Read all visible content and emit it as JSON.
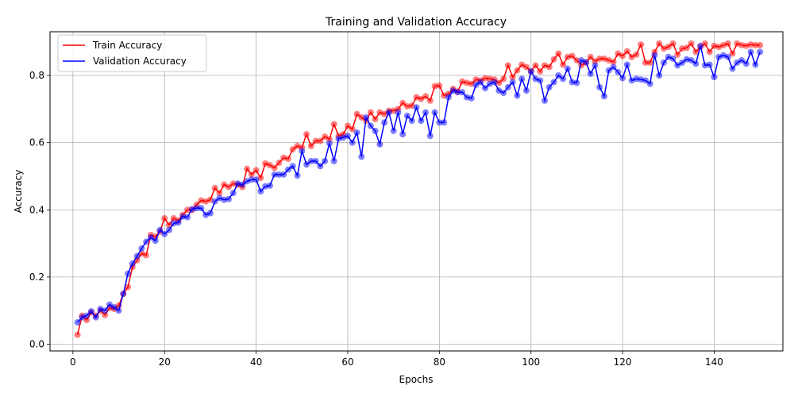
{
  "chart_data": {
    "type": "line",
    "title": "Training and Validation Accuracy",
    "xlabel": "Epochs",
    "ylabel": "Accuracy",
    "xlim": [
      -5,
      155
    ],
    "ylim": [
      -0.02,
      0.93
    ],
    "xticks": [
      0,
      20,
      40,
      60,
      80,
      100,
      120,
      140
    ],
    "yticks": [
      0.0,
      0.2,
      0.4,
      0.6,
      0.8
    ],
    "ytick_labels": [
      "0.0",
      "0.2",
      "0.4",
      "0.6",
      "0.8"
    ],
    "grid": true,
    "legend_position": "top-left",
    "x": [
      1,
      2,
      3,
      4,
      5,
      6,
      7,
      8,
      9,
      10,
      11,
      12,
      13,
      14,
      15,
      16,
      17,
      18,
      19,
      20,
      21,
      22,
      23,
      24,
      25,
      26,
      27,
      28,
      29,
      30,
      31,
      32,
      33,
      34,
      35,
      36,
      37,
      38,
      39,
      40,
      41,
      42,
      43,
      44,
      45,
      46,
      47,
      48,
      49,
      50,
      51,
      52,
      53,
      54,
      55,
      56,
      57,
      58,
      59,
      60,
      61,
      62,
      63,
      64,
      65,
      66,
      67,
      68,
      69,
      70,
      71,
      72,
      73,
      74,
      75,
      76,
      77,
      78,
      79,
      80,
      81,
      82,
      83,
      84,
      85,
      86,
      87,
      88,
      89,
      90,
      91,
      92,
      93,
      94,
      95,
      96,
      97,
      98,
      99,
      100,
      101,
      102,
      103,
      104,
      105,
      106,
      107,
      108,
      109,
      110,
      111,
      112,
      113,
      114,
      115,
      116,
      117,
      118,
      119,
      120,
      121,
      122,
      123,
      124,
      125,
      126,
      127,
      128,
      129,
      130,
      131,
      132,
      133,
      134,
      135,
      136,
      137,
      138,
      139,
      140,
      141,
      142,
      143,
      144,
      145,
      146,
      147,
      148,
      149,
      150
    ],
    "series": [
      {
        "name": "Train Accuracy",
        "color": "#ff0000",
        "values": [
          0.028,
          0.085,
          0.072,
          0.095,
          0.085,
          0.1,
          0.087,
          0.108,
          0.105,
          0.115,
          0.15,
          0.17,
          0.23,
          0.25,
          0.27,
          0.265,
          0.325,
          0.32,
          0.335,
          0.375,
          0.355,
          0.375,
          0.368,
          0.385,
          0.4,
          0.4,
          0.415,
          0.428,
          0.425,
          0.43,
          0.465,
          0.45,
          0.475,
          0.468,
          0.478,
          0.475,
          0.468,
          0.522,
          0.505,
          0.518,
          0.495,
          0.538,
          0.533,
          0.525,
          0.54,
          0.555,
          0.552,
          0.58,
          0.59,
          0.585,
          0.625,
          0.59,
          0.605,
          0.605,
          0.618,
          0.61,
          0.655,
          0.62,
          0.625,
          0.65,
          0.64,
          0.685,
          0.675,
          0.665,
          0.69,
          0.67,
          0.69,
          0.685,
          0.695,
          0.695,
          0.7,
          0.718,
          0.708,
          0.71,
          0.735,
          0.73,
          0.738,
          0.725,
          0.768,
          0.77,
          0.74,
          0.745,
          0.76,
          0.752,
          0.782,
          0.778,
          0.775,
          0.788,
          0.785,
          0.792,
          0.79,
          0.788,
          0.778,
          0.79,
          0.83,
          0.795,
          0.815,
          0.832,
          0.825,
          0.812,
          0.83,
          0.812,
          0.83,
          0.825,
          0.848,
          0.865,
          0.832,
          0.855,
          0.858,
          0.845,
          0.83,
          0.838,
          0.855,
          0.842,
          0.85,
          0.85,
          0.845,
          0.84,
          0.865,
          0.858,
          0.872,
          0.855,
          0.862,
          0.892,
          0.838,
          0.838,
          0.87,
          0.895,
          0.88,
          0.885,
          0.895,
          0.862,
          0.88,
          0.882,
          0.895,
          0.87,
          0.885,
          0.895,
          0.87,
          0.888,
          0.885,
          0.89,
          0.895,
          0.865,
          0.895,
          0.89,
          0.888,
          0.892,
          0.89,
          0.89
        ]
      },
      {
        "name": "Validation Accuracy",
        "color": "#0000ff",
        "values": [
          0.065,
          0.08,
          0.085,
          0.098,
          0.08,
          0.105,
          0.1,
          0.118,
          0.11,
          0.1,
          0.15,
          0.21,
          0.24,
          0.262,
          0.285,
          0.305,
          0.318,
          0.308,
          0.34,
          0.328,
          0.34,
          0.36,
          0.362,
          0.38,
          0.378,
          0.402,
          0.405,
          0.405,
          0.385,
          0.39,
          0.425,
          0.435,
          0.43,
          0.432,
          0.45,
          0.478,
          0.475,
          0.485,
          0.49,
          0.49,
          0.455,
          0.47,
          0.472,
          0.505,
          0.505,
          0.505,
          0.52,
          0.53,
          0.502,
          0.575,
          0.535,
          0.545,
          0.545,
          0.53,
          0.545,
          0.598,
          0.545,
          0.612,
          0.615,
          0.62,
          0.6,
          0.63,
          0.558,
          0.675,
          0.65,
          0.635,
          0.595,
          0.66,
          0.69,
          0.635,
          0.69,
          0.625,
          0.68,
          0.665,
          0.705,
          0.665,
          0.69,
          0.62,
          0.69,
          0.66,
          0.66,
          0.735,
          0.755,
          0.75,
          0.75,
          0.735,
          0.732,
          0.772,
          0.78,
          0.762,
          0.775,
          0.78,
          0.755,
          0.748,
          0.765,
          0.78,
          0.74,
          0.79,
          0.755,
          0.812,
          0.79,
          0.785,
          0.725,
          0.765,
          0.78,
          0.8,
          0.79,
          0.82,
          0.78,
          0.778,
          0.845,
          0.84,
          0.805,
          0.83,
          0.765,
          0.738,
          0.815,
          0.825,
          0.81,
          0.792,
          0.832,
          0.785,
          0.79,
          0.788,
          0.785,
          0.775,
          0.86,
          0.8,
          0.838,
          0.855,
          0.85,
          0.83,
          0.838,
          0.848,
          0.845,
          0.835,
          0.888,
          0.83,
          0.832,
          0.795,
          0.855,
          0.86,
          0.855,
          0.82,
          0.838,
          0.845,
          0.835,
          0.87,
          0.832,
          0.87
        ]
      }
    ]
  }
}
